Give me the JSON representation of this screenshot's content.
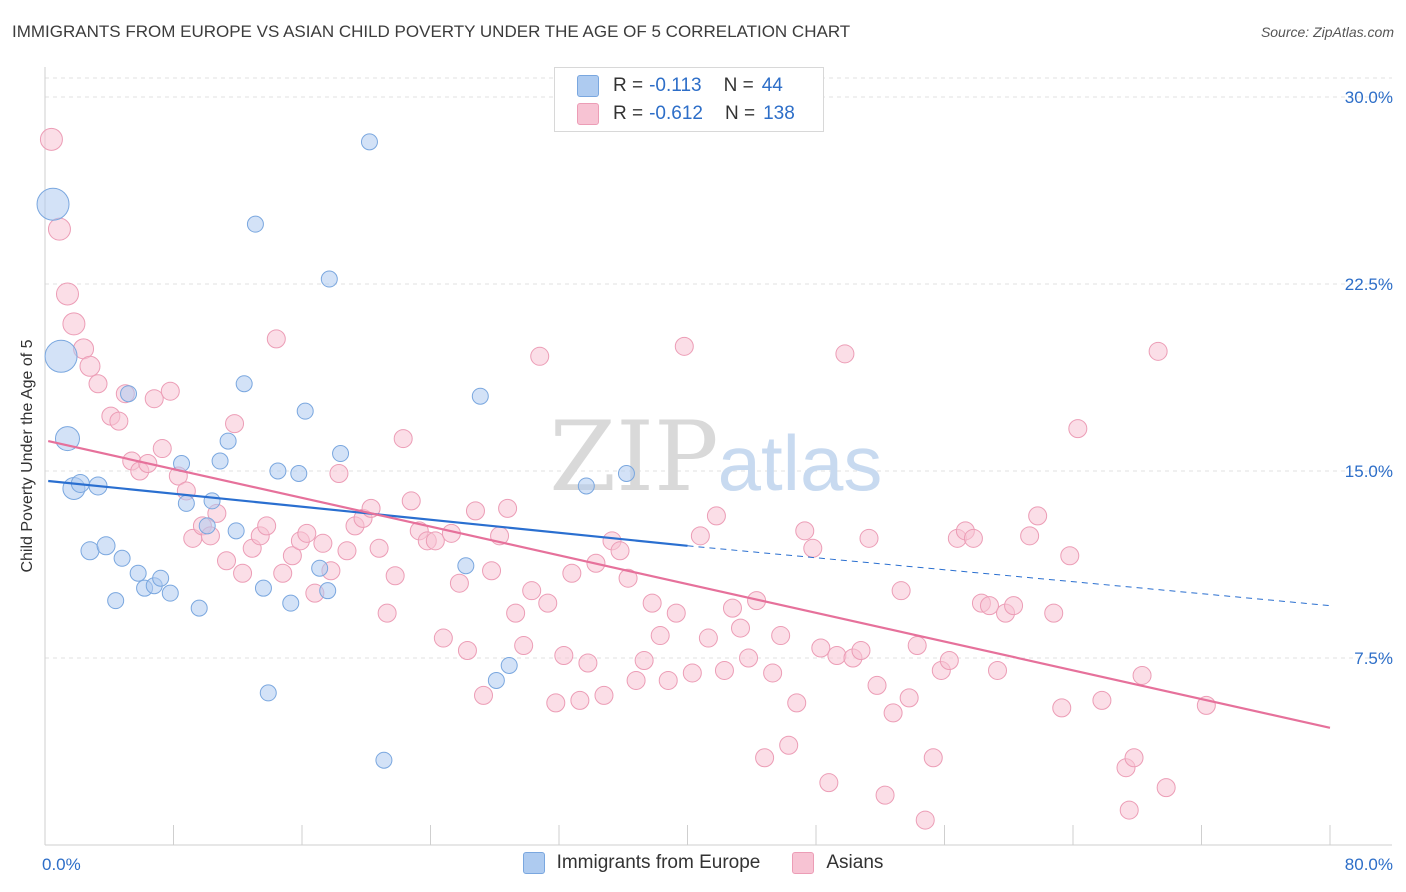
{
  "header": {
    "title": "IMMIGRANTS FROM EUROPE VS ASIAN CHILD POVERTY UNDER THE AGE OF 5 CORRELATION CHART",
    "source": "Source: ZipAtlas.com"
  },
  "watermark": {
    "zip": "ZIP",
    "atlas": "atlas"
  },
  "legend": {
    "rows": [
      {
        "r_label": "R =",
        "r_value": "-0.113",
        "n_label": "N =",
        "n_value": "44"
      },
      {
        "r_label": "R =",
        "r_value": "-0.612",
        "n_label": "N =",
        "n_value": "138"
      }
    ]
  },
  "colors": {
    "europe_fill": "#aecbf0",
    "europe_stroke": "#7aa7df",
    "europe_line": "#2a6fd0",
    "asian_fill": "#f7c3d3",
    "asian_stroke": "#ec9db6",
    "asian_line": "#e6719b",
    "tick_text": "#2d6ec8",
    "grid": "#e2e2e2"
  },
  "chart_data": {
    "type": "scatter",
    "title": "IMMIGRANTS FROM EUROPE VS ASIAN CHILD POVERTY UNDER THE AGE OF 5 CORRELATION CHART",
    "xlabel": "",
    "ylabel": "Child Poverty Under the Age of 5",
    "xlim": [
      0,
      80
    ],
    "ylim": [
      0,
      31.5
    ],
    "x_tick_labels": [
      "0.0%",
      "80.0%"
    ],
    "y_ticks": [
      7.5,
      15.0,
      22.5,
      30.0
    ],
    "y_tick_labels": [
      "7.5%",
      "15.0%",
      "22.5%",
      "30.0%"
    ],
    "grid": true,
    "legend_position": "bottom",
    "series": [
      {
        "name": "Immigrants from Europe",
        "trend": {
          "x0": 0.2,
          "y0": 14.6,
          "x1_solid": 40,
          "y1_solid": 12.0,
          "x1_dashed": 80,
          "y1_dashed": 9.6
        },
        "points": [
          [
            0.5,
            25.7,
            16
          ],
          [
            1,
            19.6,
            16
          ],
          [
            1.4,
            16.3,
            12
          ],
          [
            1.8,
            14.3,
            11
          ],
          [
            2.2,
            14.5,
            9
          ],
          [
            3.3,
            14.4,
            9
          ],
          [
            2.8,
            11.8,
            9
          ],
          [
            3.8,
            12.0,
            9
          ],
          [
            4.8,
            11.5,
            8
          ],
          [
            5.2,
            18.1,
            8
          ],
          [
            5.8,
            10.9,
            8
          ],
          [
            6.2,
            10.3,
            8
          ],
          [
            6.8,
            10.4,
            8
          ],
          [
            7.2,
            10.7,
            8
          ],
          [
            4.4,
            9.8,
            8
          ],
          [
            7.8,
            10.1,
            8
          ],
          [
            8.5,
            15.3,
            8
          ],
          [
            8.8,
            13.7,
            8
          ],
          [
            9.6,
            9.5,
            8
          ],
          [
            10.1,
            12.8,
            8
          ],
          [
            10.4,
            13.8,
            8
          ],
          [
            10.9,
            15.4,
            8
          ],
          [
            11.4,
            16.2,
            8
          ],
          [
            11.9,
            12.6,
            8
          ],
          [
            12.4,
            18.5,
            8
          ],
          [
            13.1,
            24.9,
            8
          ],
          [
            13.6,
            10.3,
            8
          ],
          [
            13.9,
            6.1,
            8
          ],
          [
            14.5,
            15.0,
            8
          ],
          [
            15.3,
            9.7,
            8
          ],
          [
            15.8,
            14.9,
            8
          ],
          [
            16.2,
            17.4,
            8
          ],
          [
            17.1,
            11.1,
            8
          ],
          [
            17.6,
            10.2,
            8
          ],
          [
            17.7,
            22.7,
            8
          ],
          [
            18.4,
            15.7,
            8
          ],
          [
            20.2,
            28.2,
            8
          ],
          [
            21.1,
            3.4,
            8
          ],
          [
            26.2,
            11.2,
            8
          ],
          [
            27.1,
            18.0,
            8
          ],
          [
            28.1,
            6.6,
            8
          ],
          [
            28.9,
            7.2,
            8
          ],
          [
            33.7,
            14.4,
            8
          ],
          [
            36.2,
            14.9,
            8
          ]
        ]
      },
      {
        "name": "Asians",
        "trend": {
          "x0": 0.2,
          "y0": 16.2,
          "x1": 80,
          "y1": 4.7
        },
        "points": [
          [
            0.4,
            28.3,
            11
          ],
          [
            0.9,
            24.7,
            11
          ],
          [
            1.4,
            22.1,
            11
          ],
          [
            1.8,
            20.9,
            11
          ],
          [
            2.4,
            19.9,
            10
          ],
          [
            2.8,
            19.2,
            10
          ],
          [
            3.3,
            18.5,
            9
          ],
          [
            4.1,
            17.2,
            9
          ],
          [
            4.6,
            17.0,
            9
          ],
          [
            5.0,
            18.1,
            9
          ],
          [
            5.4,
            15.4,
            9
          ],
          [
            5.9,
            15.0,
            9
          ],
          [
            6.4,
            15.3,
            9
          ],
          [
            6.8,
            17.9,
            9
          ],
          [
            7.3,
            15.9,
            9
          ],
          [
            7.8,
            18.2,
            9
          ],
          [
            8.3,
            14.8,
            9
          ],
          [
            8.8,
            14.2,
            9
          ],
          [
            9.2,
            12.3,
            9
          ],
          [
            9.8,
            12.8,
            9
          ],
          [
            10.3,
            12.4,
            9
          ],
          [
            10.7,
            13.3,
            9
          ],
          [
            11.3,
            11.4,
            9
          ],
          [
            11.8,
            16.9,
            9
          ],
          [
            12.3,
            10.9,
            9
          ],
          [
            12.9,
            11.9,
            9
          ],
          [
            13.4,
            12.4,
            9
          ],
          [
            13.8,
            12.8,
            9
          ],
          [
            14.4,
            20.3,
            9
          ],
          [
            14.8,
            10.9,
            9
          ],
          [
            15.4,
            11.6,
            9
          ],
          [
            15.9,
            12.2,
            9
          ],
          [
            16.3,
            12.5,
            9
          ],
          [
            16.8,
            10.1,
            9
          ],
          [
            17.3,
            12.1,
            9
          ],
          [
            17.8,
            11.0,
            9
          ],
          [
            18.3,
            14.9,
            9
          ],
          [
            18.8,
            11.8,
            9
          ],
          [
            19.3,
            12.8,
            9
          ],
          [
            19.8,
            13.1,
            9
          ],
          [
            20.3,
            13.5,
            9
          ],
          [
            20.8,
            11.9,
            9
          ],
          [
            21.3,
            9.3,
            9
          ],
          [
            21.8,
            10.8,
            9
          ],
          [
            22.3,
            16.3,
            9
          ],
          [
            22.8,
            13.8,
            9
          ],
          [
            23.3,
            12.6,
            9
          ],
          [
            23.8,
            12.2,
            9
          ],
          [
            24.3,
            12.2,
            9
          ],
          [
            24.8,
            8.3,
            9
          ],
          [
            25.3,
            12.5,
            9
          ],
          [
            25.8,
            10.5,
            9
          ],
          [
            26.3,
            7.8,
            9
          ],
          [
            26.8,
            13.4,
            9
          ],
          [
            27.3,
            6.0,
            9
          ],
          [
            27.8,
            11.0,
            9
          ],
          [
            28.3,
            12.4,
            9
          ],
          [
            28.8,
            13.5,
            9
          ],
          [
            29.3,
            9.3,
            9
          ],
          [
            29.8,
            8.0,
            9
          ],
          [
            30.3,
            10.2,
            9
          ],
          [
            30.8,
            19.6,
            9
          ],
          [
            31.3,
            9.7,
            9
          ],
          [
            31.8,
            5.7,
            9
          ],
          [
            32.3,
            7.6,
            9
          ],
          [
            32.8,
            10.9,
            9
          ],
          [
            33.3,
            5.8,
            9
          ],
          [
            33.8,
            7.3,
            9
          ],
          [
            34.3,
            11.3,
            9
          ],
          [
            34.8,
            6.0,
            9
          ],
          [
            35.3,
            12.2,
            9
          ],
          [
            35.8,
            11.8,
            9
          ],
          [
            36.3,
            10.7,
            9
          ],
          [
            36.8,
            6.6,
            9
          ],
          [
            37.3,
            7.4,
            9
          ],
          [
            37.8,
            9.7,
            9
          ],
          [
            38.3,
            8.4,
            9
          ],
          [
            38.8,
            6.6,
            9
          ],
          [
            39.3,
            9.3,
            9
          ],
          [
            39.8,
            20.0,
            9
          ],
          [
            40.3,
            6.9,
            9
          ],
          [
            40.8,
            12.4,
            9
          ],
          [
            41.3,
            8.3,
            9
          ],
          [
            41.8,
            13.2,
            9
          ],
          [
            42.3,
            7.0,
            9
          ],
          [
            42.8,
            9.5,
            9
          ],
          [
            43.3,
            8.7,
            9
          ],
          [
            43.8,
            7.5,
            9
          ],
          [
            44.3,
            9.8,
            9
          ],
          [
            44.8,
            3.5,
            9
          ],
          [
            45.3,
            6.9,
            9
          ],
          [
            45.8,
            8.4,
            9
          ],
          [
            46.3,
            4.0,
            9
          ],
          [
            46.8,
            5.7,
            9
          ],
          [
            47.3,
            12.6,
            9
          ],
          [
            47.8,
            11.9,
            9
          ],
          [
            48.3,
            7.9,
            9
          ],
          [
            48.8,
            2.5,
            9
          ],
          [
            49.3,
            7.6,
            9
          ],
          [
            49.8,
            19.7,
            9
          ],
          [
            50.3,
            7.5,
            9
          ],
          [
            50.8,
            7.8,
            9
          ],
          [
            51.3,
            12.3,
            9
          ],
          [
            51.8,
            6.4,
            9
          ],
          [
            52.3,
            2.0,
            9
          ],
          [
            52.8,
            5.3,
            9
          ],
          [
            53.3,
            10.2,
            9
          ],
          [
            53.8,
            5.9,
            9
          ],
          [
            54.3,
            8.0,
            9
          ],
          [
            54.8,
            1.0,
            9
          ],
          [
            55.3,
            3.5,
            9
          ],
          [
            55.8,
            7.0,
            9
          ],
          [
            56.3,
            7.4,
            9
          ],
          [
            56.8,
            12.3,
            9
          ],
          [
            57.3,
            12.6,
            9
          ],
          [
            57.8,
            12.3,
            9
          ],
          [
            58.3,
            9.7,
            9
          ],
          [
            58.8,
            9.6,
            9
          ],
          [
            59.3,
            7.0,
            9
          ],
          [
            59.8,
            9.3,
            9
          ],
          [
            60.3,
            9.6,
            9
          ],
          [
            61.3,
            12.4,
            9
          ],
          [
            61.8,
            13.2,
            9
          ],
          [
            62.8,
            9.3,
            9
          ],
          [
            63.3,
            5.5,
            9
          ],
          [
            63.8,
            11.6,
            9
          ],
          [
            64.3,
            16.7,
            9
          ],
          [
            65.8,
            5.8,
            9
          ],
          [
            67.3,
            3.1,
            9
          ],
          [
            67.8,
            3.5,
            9
          ],
          [
            68.3,
            6.8,
            9
          ],
          [
            69.3,
            19.8,
            9
          ],
          [
            67.5,
            1.4,
            9
          ],
          [
            69.8,
            2.3,
            9
          ],
          [
            72.3,
            5.6,
            9
          ]
        ]
      }
    ]
  },
  "legend_bottom": [
    "Immigrants from Europe",
    "Asians"
  ]
}
